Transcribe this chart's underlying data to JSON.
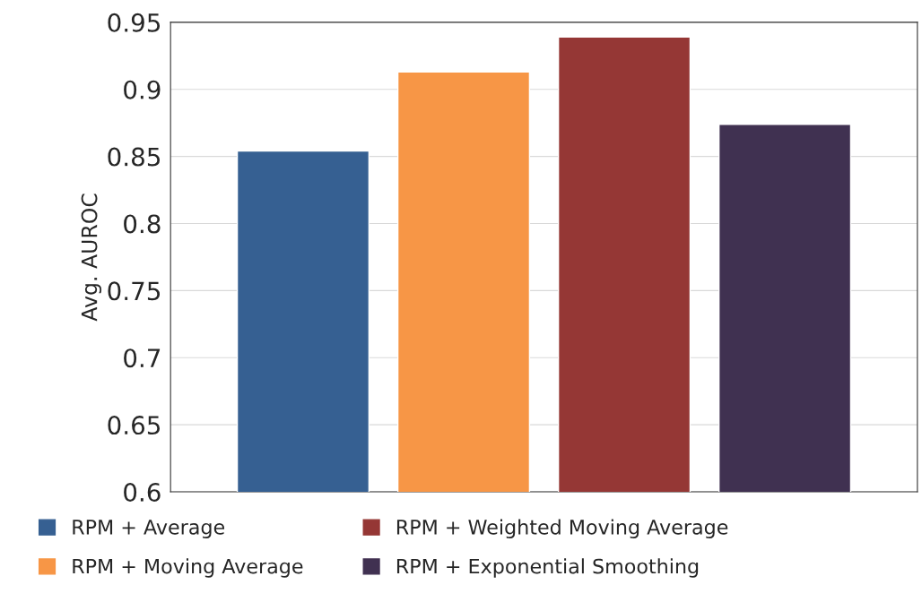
{
  "chart_data": {
    "type": "bar",
    "ylabel": "Avg. AUROC",
    "categories": [
      null
    ],
    "series": [
      {
        "name": "RPM + Average",
        "color": "#366092",
        "values": [
          0.854
        ]
      },
      {
        "name": "RPM + Moving Average",
        "color": "#f79646",
        "values": [
          0.913
        ]
      },
      {
        "name": "RPM + Weighted Moving Average",
        "color": "#953735",
        "values": [
          0.939
        ]
      },
      {
        "name": "RPM + Exponential Smoothing",
        "color": "#403151",
        "values": [
          0.874
        ]
      }
    ],
    "ylim": [
      0.6,
      0.95
    ],
    "yticks": [
      0.6,
      0.65,
      0.7,
      0.75,
      0.8,
      0.85,
      0.9,
      0.95
    ],
    "grid": "y",
    "legend": "bottom"
  }
}
